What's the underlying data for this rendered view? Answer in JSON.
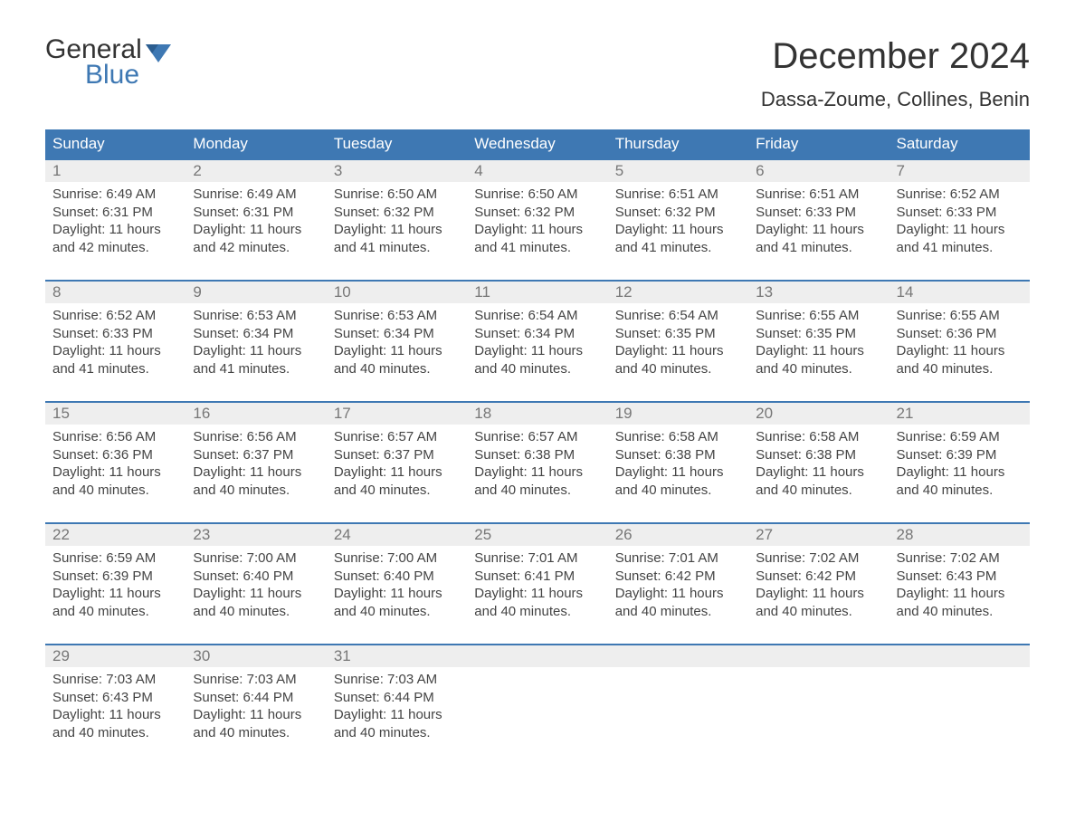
{
  "logo": {
    "line1": "General",
    "line2": "Blue",
    "brand_color": "#3e78b3"
  },
  "title": "December 2024",
  "location": "Dassa-Zoume, Collines, Benin",
  "weekdays": [
    "Sunday",
    "Monday",
    "Tuesday",
    "Wednesday",
    "Thursday",
    "Friday",
    "Saturday"
  ],
  "colors": {
    "header_bg": "#3e78b3",
    "header_text": "#ffffff",
    "daynum_bg": "#eeeeee",
    "daynum_text": "#777777",
    "body_text": "#444444",
    "row_border": "#3e78b3"
  },
  "weeks": [
    [
      {
        "n": "1",
        "sr": "Sunrise: 6:49 AM",
        "ss": "Sunset: 6:31 PM",
        "d1": "Daylight: 11 hours",
        "d2": "and 42 minutes."
      },
      {
        "n": "2",
        "sr": "Sunrise: 6:49 AM",
        "ss": "Sunset: 6:31 PM",
        "d1": "Daylight: 11 hours",
        "d2": "and 42 minutes."
      },
      {
        "n": "3",
        "sr": "Sunrise: 6:50 AM",
        "ss": "Sunset: 6:32 PM",
        "d1": "Daylight: 11 hours",
        "d2": "and 41 minutes."
      },
      {
        "n": "4",
        "sr": "Sunrise: 6:50 AM",
        "ss": "Sunset: 6:32 PM",
        "d1": "Daylight: 11 hours",
        "d2": "and 41 minutes."
      },
      {
        "n": "5",
        "sr": "Sunrise: 6:51 AM",
        "ss": "Sunset: 6:32 PM",
        "d1": "Daylight: 11 hours",
        "d2": "and 41 minutes."
      },
      {
        "n": "6",
        "sr": "Sunrise: 6:51 AM",
        "ss": "Sunset: 6:33 PM",
        "d1": "Daylight: 11 hours",
        "d2": "and 41 minutes."
      },
      {
        "n": "7",
        "sr": "Sunrise: 6:52 AM",
        "ss": "Sunset: 6:33 PM",
        "d1": "Daylight: 11 hours",
        "d2": "and 41 minutes."
      }
    ],
    [
      {
        "n": "8",
        "sr": "Sunrise: 6:52 AM",
        "ss": "Sunset: 6:33 PM",
        "d1": "Daylight: 11 hours",
        "d2": "and 41 minutes."
      },
      {
        "n": "9",
        "sr": "Sunrise: 6:53 AM",
        "ss": "Sunset: 6:34 PM",
        "d1": "Daylight: 11 hours",
        "d2": "and 41 minutes."
      },
      {
        "n": "10",
        "sr": "Sunrise: 6:53 AM",
        "ss": "Sunset: 6:34 PM",
        "d1": "Daylight: 11 hours",
        "d2": "and 40 minutes."
      },
      {
        "n": "11",
        "sr": "Sunrise: 6:54 AM",
        "ss": "Sunset: 6:34 PM",
        "d1": "Daylight: 11 hours",
        "d2": "and 40 minutes."
      },
      {
        "n": "12",
        "sr": "Sunrise: 6:54 AM",
        "ss": "Sunset: 6:35 PM",
        "d1": "Daylight: 11 hours",
        "d2": "and 40 minutes."
      },
      {
        "n": "13",
        "sr": "Sunrise: 6:55 AM",
        "ss": "Sunset: 6:35 PM",
        "d1": "Daylight: 11 hours",
        "d2": "and 40 minutes."
      },
      {
        "n": "14",
        "sr": "Sunrise: 6:55 AM",
        "ss": "Sunset: 6:36 PM",
        "d1": "Daylight: 11 hours",
        "d2": "and 40 minutes."
      }
    ],
    [
      {
        "n": "15",
        "sr": "Sunrise: 6:56 AM",
        "ss": "Sunset: 6:36 PM",
        "d1": "Daylight: 11 hours",
        "d2": "and 40 minutes."
      },
      {
        "n": "16",
        "sr": "Sunrise: 6:56 AM",
        "ss": "Sunset: 6:37 PM",
        "d1": "Daylight: 11 hours",
        "d2": "and 40 minutes."
      },
      {
        "n": "17",
        "sr": "Sunrise: 6:57 AM",
        "ss": "Sunset: 6:37 PM",
        "d1": "Daylight: 11 hours",
        "d2": "and 40 minutes."
      },
      {
        "n": "18",
        "sr": "Sunrise: 6:57 AM",
        "ss": "Sunset: 6:38 PM",
        "d1": "Daylight: 11 hours",
        "d2": "and 40 minutes."
      },
      {
        "n": "19",
        "sr": "Sunrise: 6:58 AM",
        "ss": "Sunset: 6:38 PM",
        "d1": "Daylight: 11 hours",
        "d2": "and 40 minutes."
      },
      {
        "n": "20",
        "sr": "Sunrise: 6:58 AM",
        "ss": "Sunset: 6:38 PM",
        "d1": "Daylight: 11 hours",
        "d2": "and 40 minutes."
      },
      {
        "n": "21",
        "sr": "Sunrise: 6:59 AM",
        "ss": "Sunset: 6:39 PM",
        "d1": "Daylight: 11 hours",
        "d2": "and 40 minutes."
      }
    ],
    [
      {
        "n": "22",
        "sr": "Sunrise: 6:59 AM",
        "ss": "Sunset: 6:39 PM",
        "d1": "Daylight: 11 hours",
        "d2": "and 40 minutes."
      },
      {
        "n": "23",
        "sr": "Sunrise: 7:00 AM",
        "ss": "Sunset: 6:40 PM",
        "d1": "Daylight: 11 hours",
        "d2": "and 40 minutes."
      },
      {
        "n": "24",
        "sr": "Sunrise: 7:00 AM",
        "ss": "Sunset: 6:40 PM",
        "d1": "Daylight: 11 hours",
        "d2": "and 40 minutes."
      },
      {
        "n": "25",
        "sr": "Sunrise: 7:01 AM",
        "ss": "Sunset: 6:41 PM",
        "d1": "Daylight: 11 hours",
        "d2": "and 40 minutes."
      },
      {
        "n": "26",
        "sr": "Sunrise: 7:01 AM",
        "ss": "Sunset: 6:42 PM",
        "d1": "Daylight: 11 hours",
        "d2": "and 40 minutes."
      },
      {
        "n": "27",
        "sr": "Sunrise: 7:02 AM",
        "ss": "Sunset: 6:42 PM",
        "d1": "Daylight: 11 hours",
        "d2": "and 40 minutes."
      },
      {
        "n": "28",
        "sr": "Sunrise: 7:02 AM",
        "ss": "Sunset: 6:43 PM",
        "d1": "Daylight: 11 hours",
        "d2": "and 40 minutes."
      }
    ],
    [
      {
        "n": "29",
        "sr": "Sunrise: 7:03 AM",
        "ss": "Sunset: 6:43 PM",
        "d1": "Daylight: 11 hours",
        "d2": "and 40 minutes."
      },
      {
        "n": "30",
        "sr": "Sunrise: 7:03 AM",
        "ss": "Sunset: 6:44 PM",
        "d1": "Daylight: 11 hours",
        "d2": "and 40 minutes."
      },
      {
        "n": "31",
        "sr": "Sunrise: 7:03 AM",
        "ss": "Sunset: 6:44 PM",
        "d1": "Daylight: 11 hours",
        "d2": "and 40 minutes."
      },
      {
        "n": "",
        "sr": "",
        "ss": "",
        "d1": "",
        "d2": ""
      },
      {
        "n": "",
        "sr": "",
        "ss": "",
        "d1": "",
        "d2": ""
      },
      {
        "n": "",
        "sr": "",
        "ss": "",
        "d1": "",
        "d2": ""
      },
      {
        "n": "",
        "sr": "",
        "ss": "",
        "d1": "",
        "d2": ""
      }
    ]
  ]
}
